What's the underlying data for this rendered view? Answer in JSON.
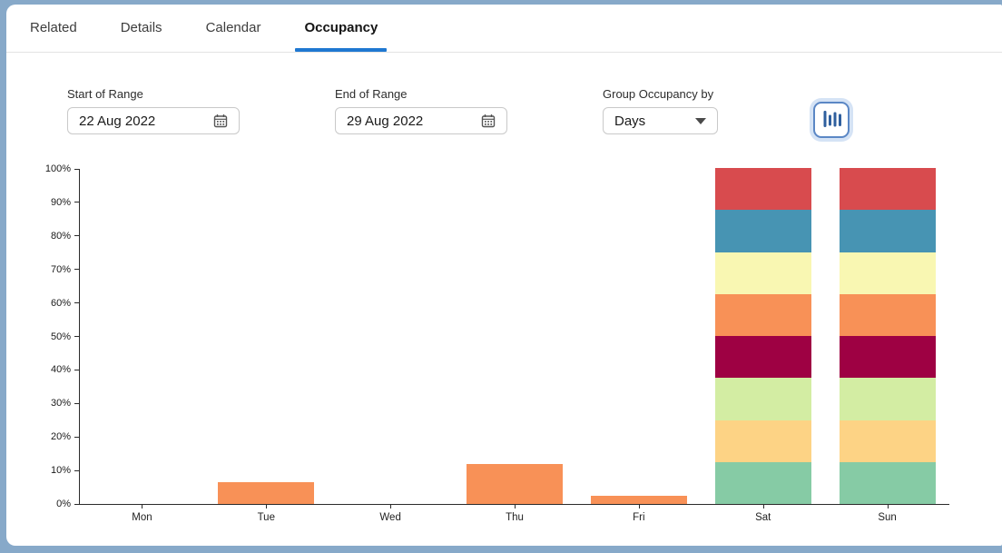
{
  "tabs": [
    {
      "label": "Related",
      "active": false
    },
    {
      "label": "Details",
      "active": false
    },
    {
      "label": "Calendar",
      "active": false
    },
    {
      "label": "Occupancy",
      "active": true
    }
  ],
  "filters": {
    "start_of_range": {
      "label": "Start of Range",
      "value": "22 Aug 2022",
      "icon": "calendar-icon"
    },
    "end_of_range": {
      "label": "End of Range",
      "value": "29 Aug 2022",
      "icon": "calendar-icon"
    },
    "group_by": {
      "label": "Group Occupancy by",
      "value": "Days",
      "icon": "caret-down-icon"
    }
  },
  "toolbar": {
    "chart_type_button": {
      "icon": "bar-chart-icon",
      "selected": true,
      "accent_color": "#2f5f9e"
    }
  },
  "theme": {
    "frame_color": "#87a9c9",
    "active_tab_underline": "#1f78d1",
    "axis_color": "#2b2b2b",
    "orange": "#f89157"
  },
  "chart_data": {
    "type": "bar",
    "stacked": true,
    "title": "",
    "xlabel": "",
    "ylabel": "",
    "ylim": [
      0,
      100
    ],
    "yticks": [
      "0%",
      "10%",
      "20%",
      "30%",
      "40%",
      "50%",
      "60%",
      "70%",
      "80%",
      "90%",
      "100%"
    ],
    "categories": [
      "Mon",
      "Tue",
      "Wed",
      "Thu",
      "Fri",
      "Sat",
      "Sun"
    ],
    "legend": false,
    "grid": false,
    "segment_order": "bottom-to-top",
    "bars": [
      {
        "category": "Mon",
        "segments": []
      },
      {
        "category": "Tue",
        "segments": [
          {
            "value": 6.5,
            "color": "#f89157"
          }
        ]
      },
      {
        "category": "Wed",
        "segments": []
      },
      {
        "category": "Thu",
        "segments": [
          {
            "value": 12,
            "color": "#f89157"
          }
        ]
      },
      {
        "category": "Fri",
        "segments": [
          {
            "value": 2.5,
            "color": "#f89157"
          }
        ]
      },
      {
        "category": "Sat",
        "segments": [
          {
            "value": 12.5,
            "color": "#86cba5"
          },
          {
            "value": 12.5,
            "color": "#fdd385"
          },
          {
            "value": 12.5,
            "color": "#d3eda3"
          },
          {
            "value": 12.5,
            "color": "#9e0143"
          },
          {
            "value": 12.5,
            "color": "#f89157"
          },
          {
            "value": 12.5,
            "color": "#f9f7b2"
          },
          {
            "value": 12.5,
            "color": "#4794b3"
          },
          {
            "value": 12.5,
            "color": "#d84b4e"
          }
        ]
      },
      {
        "category": "Sun",
        "segments": [
          {
            "value": 12.5,
            "color": "#86cba5"
          },
          {
            "value": 12.5,
            "color": "#fdd385"
          },
          {
            "value": 12.5,
            "color": "#d3eda3"
          },
          {
            "value": 12.5,
            "color": "#9e0143"
          },
          {
            "value": 12.5,
            "color": "#f89157"
          },
          {
            "value": 12.5,
            "color": "#f9f7b2"
          },
          {
            "value": 12.5,
            "color": "#4794b3"
          },
          {
            "value": 12.5,
            "color": "#d84b4e"
          }
        ]
      }
    ]
  }
}
